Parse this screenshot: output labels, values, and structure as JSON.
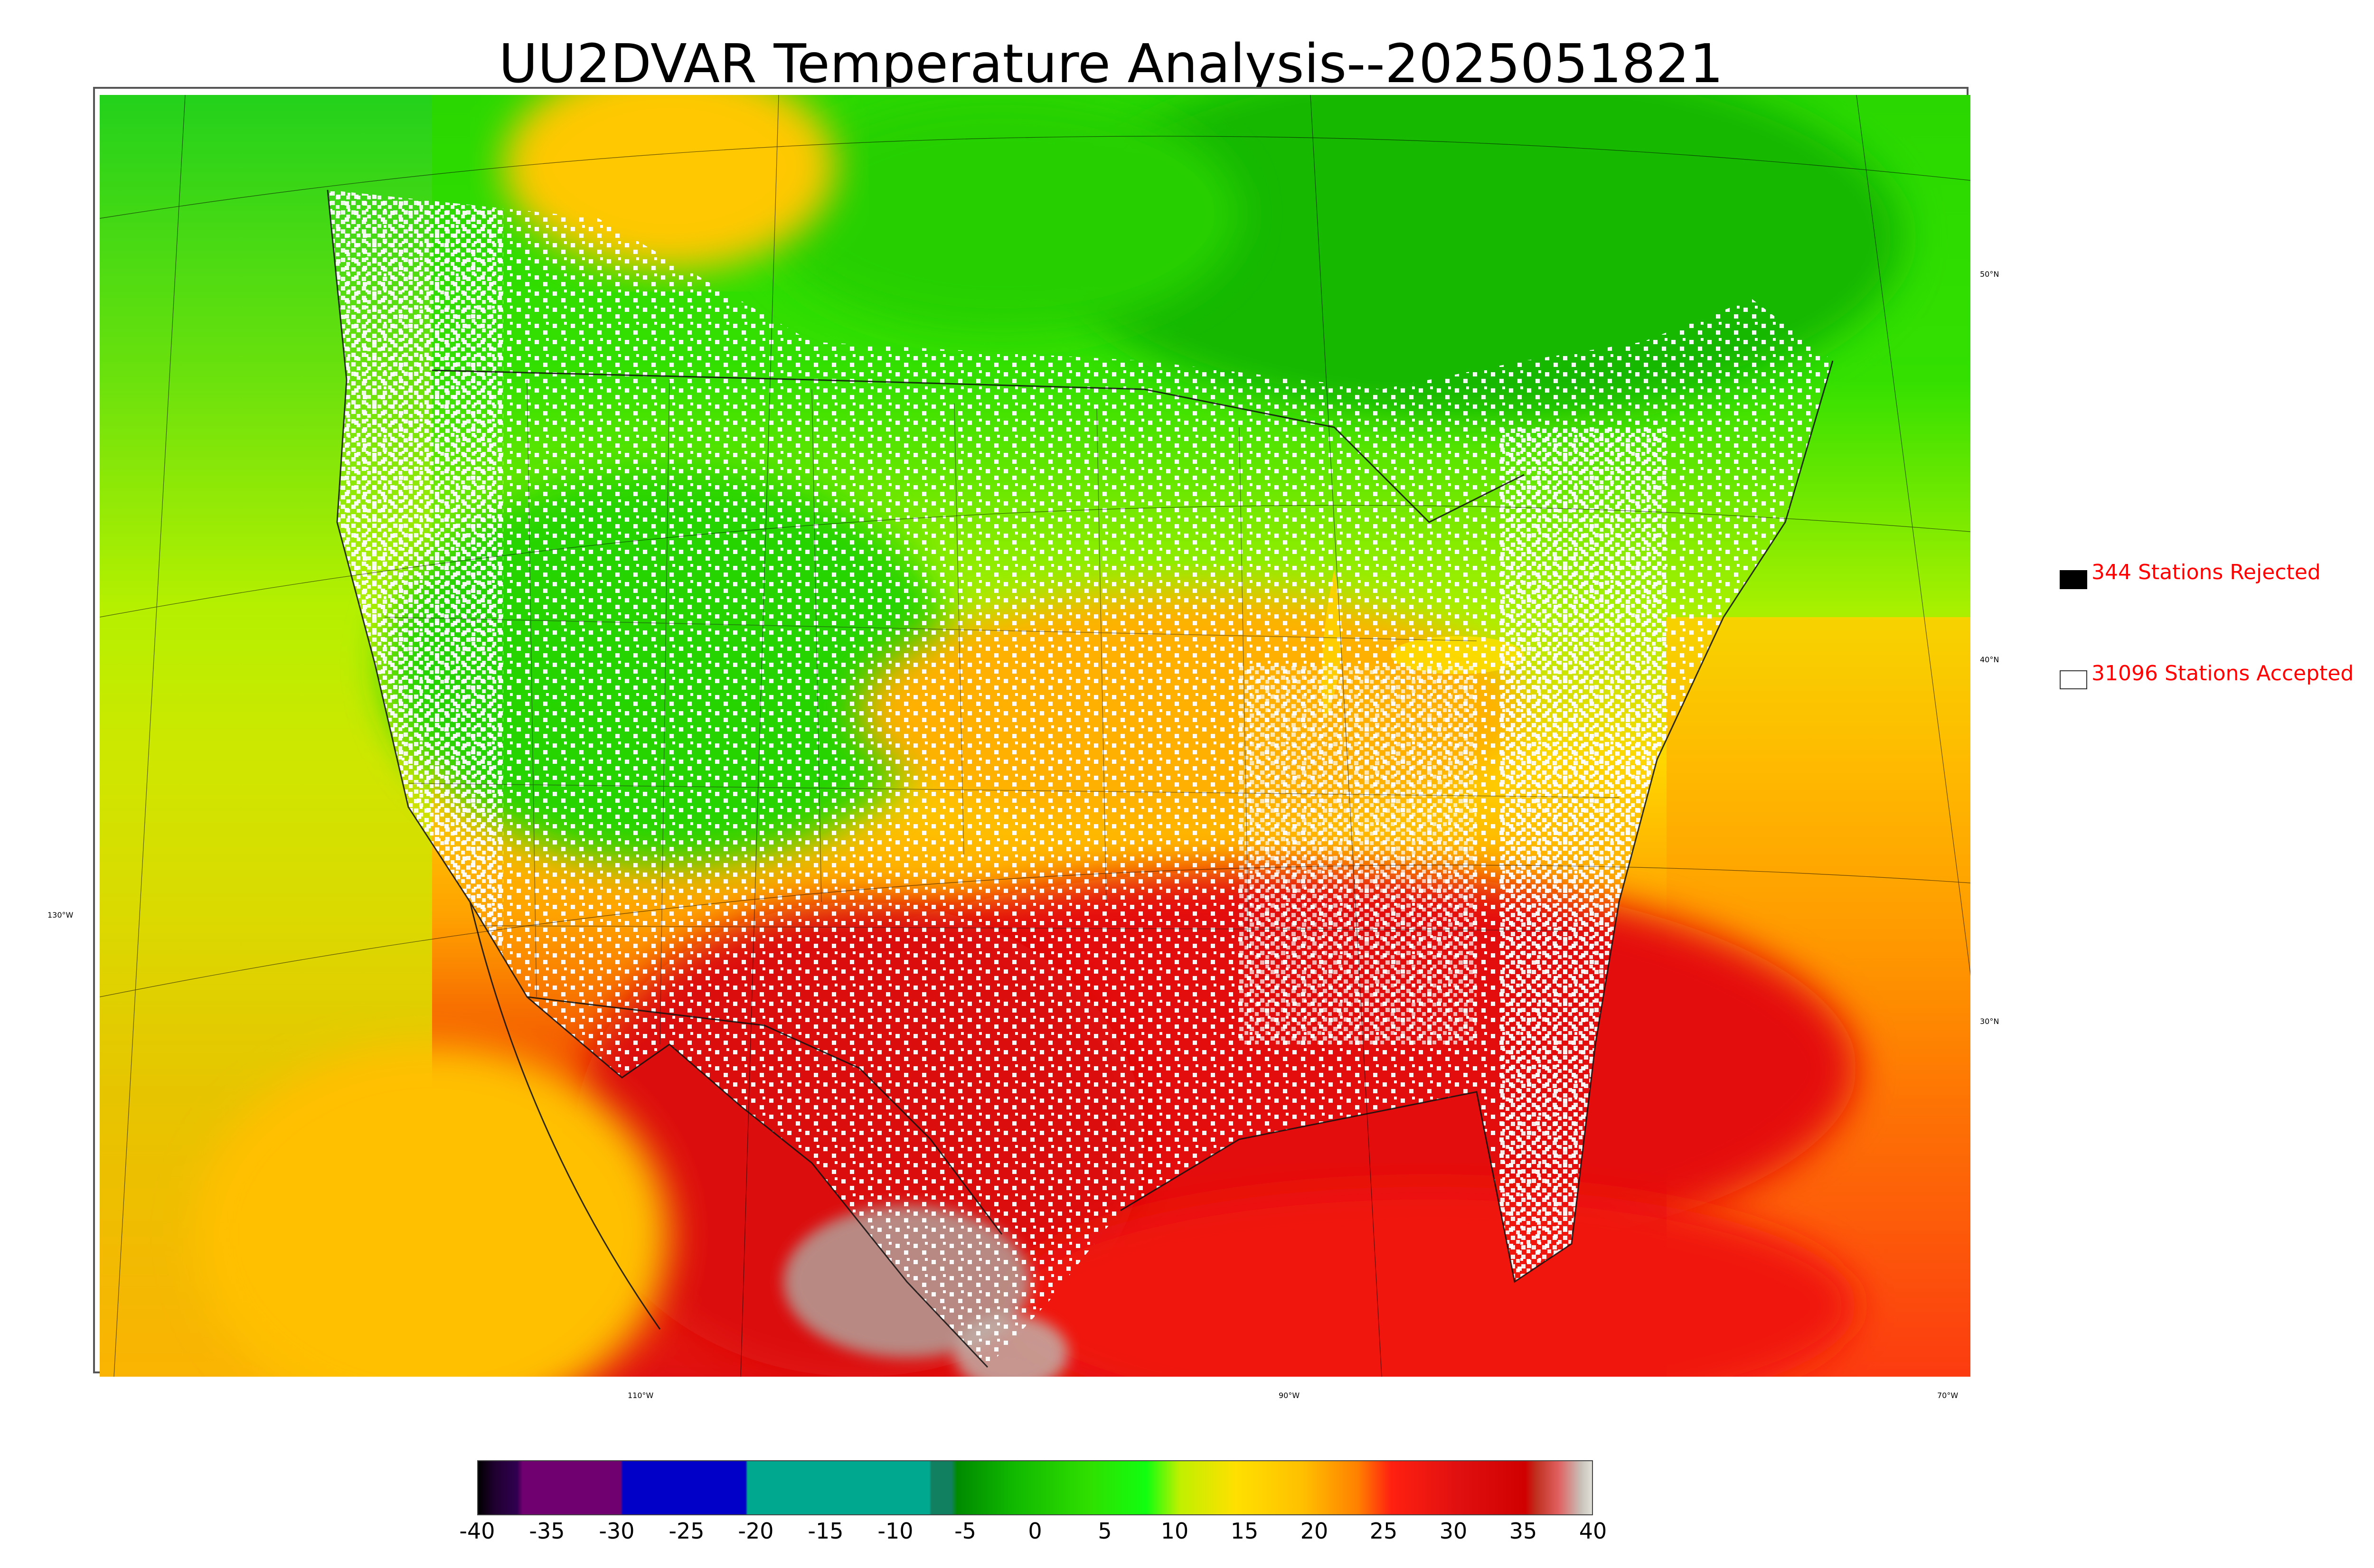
{
  "title": "UU2DVAR Temperature Analysis--2025051821",
  "legend": {
    "rejected_label": "344 Stations Rejected",
    "accepted_label": "31096 Stations Accepted",
    "rejected_color": "#000000",
    "accepted_color": "#ffffff",
    "text_color": "#ff0000"
  },
  "map_labels": {
    "lat": [
      "50°N",
      "40°N",
      "30°N"
    ],
    "lon": [
      "130°W",
      "110°W",
      "90°W",
      "70°W"
    ]
  },
  "colorbar": {
    "ticks": [
      "-40",
      "-35",
      "-30",
      "-25",
      "-20",
      "-15",
      "-10",
      "-5",
      "0",
      "5",
      "10",
      "15",
      "20",
      "25",
      "30",
      "35",
      "40"
    ],
    "range": [
      -40,
      40
    ]
  },
  "colors": {
    "hot": "#e01010",
    "warm": "#ff9a00",
    "mild": "#ffd800",
    "cool": "#aaf000",
    "cold": "#22e000",
    "teal": "#00a890",
    "blue": "#0000c8",
    "purple": "#700070"
  }
}
